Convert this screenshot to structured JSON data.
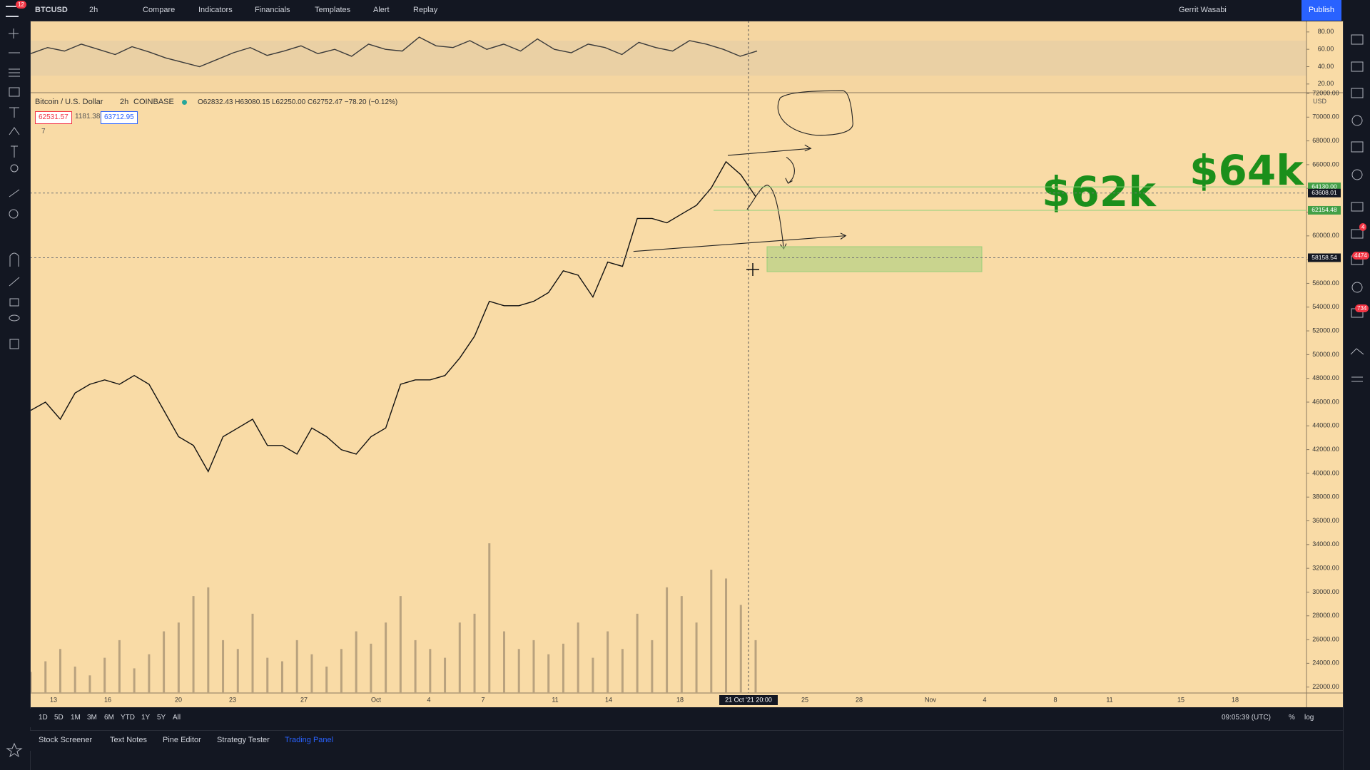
{
  "top_bar": {
    "symbol": "BTCUSD",
    "interval": "2h",
    "compare": "Compare",
    "indicators": "Indicators",
    "financials": "Financials",
    "templates": "Templates",
    "alert": "Alert",
    "replay": "Replay",
    "user": "Gerrit Wasabi",
    "publish": "Publish",
    "badge": "12"
  },
  "legend": {
    "name": "Bitcoin / U.S. Dollar",
    "interval": "2h",
    "exchange": "COINBASE",
    "ohlc": "O62832.43 H63080.15 L62250.00 C62752.47 −78.20 (−0.12%)",
    "bid": "62531.57",
    "spread": "1181.38",
    "ask": "63712.95",
    "indicator_count": "7",
    "currency": "USD"
  },
  "annotations": [
    "$62k",
    "$64k"
  ],
  "time_axis": {
    "labels": [
      "13",
      "16",
      "20",
      "23",
      "27",
      "Oct",
      "4",
      "7",
      "11",
      "14",
      "18",
      "25",
      "28",
      "Nov",
      "4",
      "8",
      "11",
      "15",
      "18"
    ],
    "crosshair": "21 Oct '21   20:00"
  },
  "bottom_bar": {
    "ranges": [
      "1D",
      "5D",
      "1M",
      "3M",
      "6M",
      "YTD",
      "1Y",
      "5Y",
      "All"
    ],
    "clock": "09:05:39 (UTC)",
    "percent": "%",
    "log": "log"
  },
  "tabs": [
    "Stock Screener",
    "Text Notes",
    "Pine Editor",
    "Strategy Tester",
    "Trading Panel"
  ],
  "sidebar_badges": [
    "4",
    "4474",
    "734"
  ],
  "chart_data": [
    {
      "type": "line",
      "color": "#111111",
      "grid": false,
      "values": [
        45300,
        46000,
        44560,
        46760,
        47500,
        47870,
        47500,
        48240,
        47500,
        45300,
        43090,
        42350,
        40150,
        43090,
        43820,
        44560,
        42350,
        42350,
        41620,
        43820,
        43090,
        41990,
        41620,
        43090,
        43820,
        47500,
        47870,
        47870,
        48240,
        49710,
        51540,
        54490,
        54120,
        54120,
        54490,
        55220,
        57060,
        56690,
        54850,
        57790,
        57430,
        61470,
        61470,
        61100,
        61840,
        62570,
        64040,
        66250,
        65150,
        63310
      ],
      "ylim": [
        21500,
        72000
      ],
      "yticks": [
        {
          "value": 22000,
          "label": "22000.00"
        },
        {
          "value": 24000,
          "label": "24000.00"
        },
        {
          "value": 26000,
          "label": "26000.00"
        },
        {
          "value": 28000,
          "label": "28000.00"
        },
        {
          "value": 30000,
          "label": "30000.00"
        },
        {
          "value": 32000,
          "label": "32000.00"
        },
        {
          "value": 34000,
          "label": "34000.00"
        },
        {
          "value": 36000,
          "label": "36000.00"
        },
        {
          "value": 38000,
          "label": "38000.00"
        },
        {
          "value": 40000,
          "label": "40000.00"
        },
        {
          "value": 42000,
          "label": "42000.00"
        },
        {
          "value": 44000,
          "label": "44000.00"
        },
        {
          "value": 46000,
          "label": "46000.00"
        },
        {
          "value": 48000,
          "label": "48000.00"
        },
        {
          "value": 50000,
          "label": "50000.00"
        },
        {
          "value": 52000,
          "label": "52000.00"
        },
        {
          "value": 54000,
          "label": "54000.00"
        },
        {
          "value": 56000,
          "label": "56000.00"
        },
        {
          "value": 58000,
          "label": "58000.00"
        },
        {
          "value": 60000,
          "label": "60000.00"
        },
        {
          "value": 62000,
          "label": "62000.00"
        },
        {
          "value": 64000,
          "label": "64000.00"
        },
        {
          "value": 66000,
          "label": "66000.00"
        },
        {
          "value": 68000,
          "label": "68000.00"
        },
        {
          "value": 70000,
          "label": "70000.00"
        },
        {
          "value": 72000,
          "label": "72000.00"
        }
      ],
      "markers": [
        {
          "value": 64130,
          "label": "64130.00",
          "color": "#43a047"
        },
        {
          "value": 63608.01,
          "label": "63608.01",
          "color": "#131722"
        },
        {
          "value": 62154.48,
          "label": "62154.48",
          "color": "#43a047"
        },
        {
          "value": 58158.54,
          "label": "58158.54",
          "color": "#131722"
        }
      ]
    },
    {
      "type": "line",
      "color": "#3a3a3a",
      "grid": false,
      "values": [
        55,
        62,
        58,
        66,
        60,
        54,
        63,
        57,
        50,
        45,
        40,
        48,
        56,
        62,
        53,
        58,
        64,
        55,
        60,
        52,
        66,
        60,
        58,
        74,
        64,
        62,
        70,
        60,
        66,
        58,
        72,
        60,
        56,
        66,
        62,
        54,
        68,
        62,
        58,
        70,
        66,
        60,
        52,
        58
      ],
      "ylim": [
        10,
        93
      ],
      "yticks": [
        {
          "value": 80,
          "label": "80.00"
        },
        {
          "value": 60,
          "label": "60.00"
        },
        {
          "value": 40,
          "label": "40.00"
        },
        {
          "value": 20,
          "label": "20.00"
        }
      ]
    },
    {
      "type": "bar",
      "color": "#b9a27e",
      "values": [
        12,
        18,
        25,
        15,
        10,
        20,
        30,
        14,
        22,
        35,
        40,
        55,
        60,
        30,
        25,
        45,
        20,
        18,
        30,
        22,
        15,
        25,
        35,
        28,
        40,
        55,
        30,
        25,
        20,
        40,
        45,
        85,
        35,
        25,
        30,
        22,
        28,
        40,
        20,
        35,
        25,
        45,
        30,
        60,
        55,
        40,
        70,
        65,
        50,
        30
      ]
    }
  ]
}
